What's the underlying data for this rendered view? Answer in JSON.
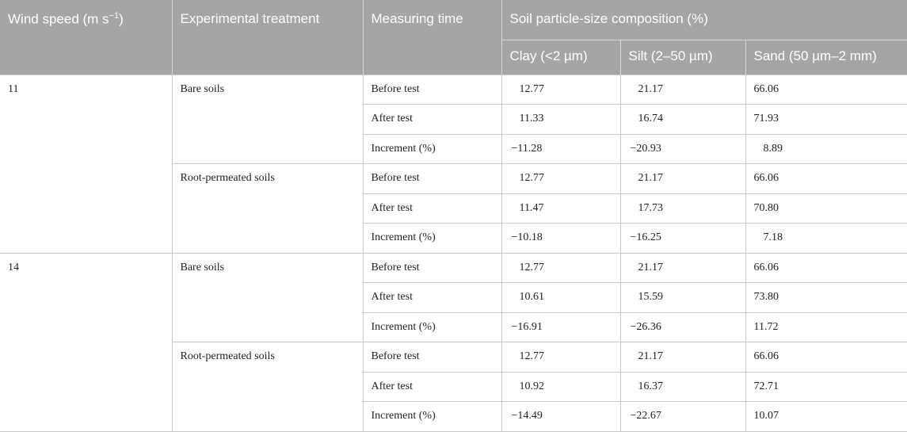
{
  "headers": {
    "wind_speed": "Wind speed (m s",
    "wind_speed_sup": "−1",
    "wind_speed_close": ")",
    "treatment": "Experimental treatment",
    "measuring_time": "Measuring time",
    "composition": "Soil particle-size composition (%)",
    "clay": "Clay (<2 µm)",
    "silt": "Silt (2–50 µm)",
    "sand": "Sand (50 µm–2 mm)"
  },
  "groups": [
    {
      "wind_speed": "11",
      "treatments": [
        {
          "name": "Bare soils",
          "rows": [
            {
              "time": "Before test",
              "clay": "12.77",
              "silt": "21.17",
              "sand": "66.06"
            },
            {
              "time": "After test",
              "clay": "11.33",
              "silt": "16.74",
              "sand": "71.93"
            },
            {
              "time": "Increment (%)",
              "clay": "−11.28",
              "silt": "−20.93",
              "sand": "8.89"
            }
          ]
        },
        {
          "name": "Root-permeated soils",
          "rows": [
            {
              "time": "Before test",
              "clay": "12.77",
              "silt": "21.17",
              "sand": "66.06"
            },
            {
              "time": "After test",
              "clay": "11.47",
              "silt": "17.73",
              "sand": "70.80"
            },
            {
              "time": "Increment (%)",
              "clay": "−10.18",
              "silt": "−16.25",
              "sand": "7.18"
            }
          ]
        }
      ]
    },
    {
      "wind_speed": "14",
      "treatments": [
        {
          "name": "Bare soils",
          "rows": [
            {
              "time": "Before test",
              "clay": "12.77",
              "silt": "21.17",
              "sand": "66.06"
            },
            {
              "time": "After test",
              "clay": "10.61",
              "silt": "15.59",
              "sand": "73.80"
            },
            {
              "time": "Increment (%)",
              "clay": "−16.91",
              "silt": "−26.36",
              "sand": "11.72"
            }
          ]
        },
        {
          "name": "Root-permeated soils",
          "rows": [
            {
              "time": "Before test",
              "clay": "12.77",
              "silt": "21.17",
              "sand": "66.06"
            },
            {
              "time": "After test",
              "clay": "10.92",
              "silt": "16.37",
              "sand": "72.71"
            },
            {
              "time": "Increment (%)",
              "clay": "−14.49",
              "silt": "−22.67",
              "sand": "10.07"
            }
          ]
        }
      ]
    }
  ]
}
